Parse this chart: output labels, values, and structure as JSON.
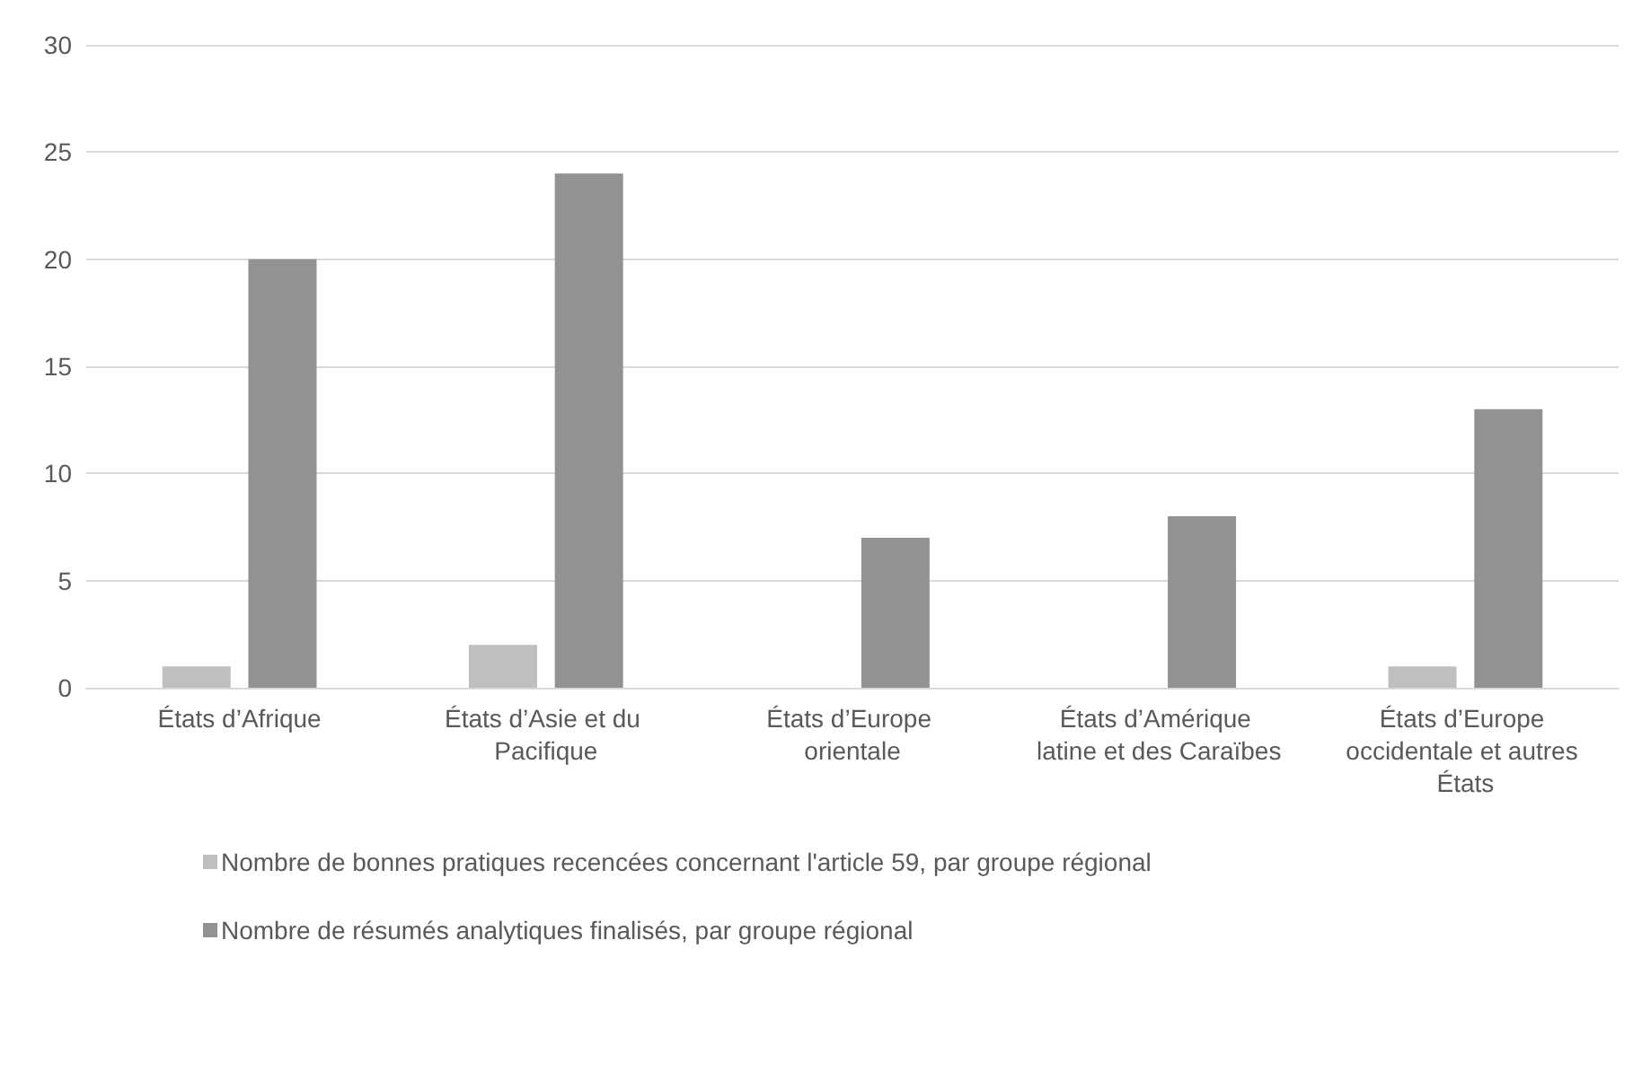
{
  "chart_data": {
    "type": "bar",
    "categories": [
      "États d’Afrique",
      "États d’Asie et du Pacifique",
      "États d’Europe orientale",
      "États d’Amérique latine et des Caraïbes",
      "États d’Europe occidentale et autres États"
    ],
    "series": [
      {
        "name": "Nombre de bonnes pratiques recencées concernant l'article 59, par groupe régional",
        "color": "#bfbfbf",
        "values": [
          1,
          2,
          0,
          0,
          1
        ]
      },
      {
        "name": "Nombre de résumés analytiques finalisés, par groupe régional",
        "color": "#929292",
        "values": [
          20,
          24,
          7,
          8,
          13
        ]
      }
    ],
    "ylim": [
      0,
      30
    ],
    "yticks": [
      0,
      5,
      10,
      15,
      20,
      25,
      30
    ],
    "grid": "y",
    "legend": "bottom"
  }
}
